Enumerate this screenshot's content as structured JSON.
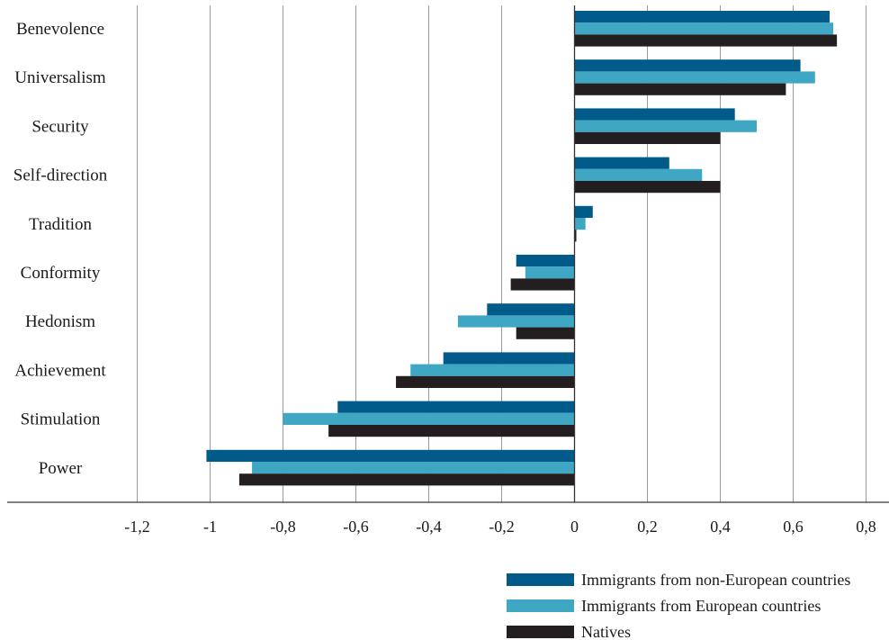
{
  "chart_data": {
    "type": "bar",
    "orientation": "horizontal",
    "categories": [
      "Benevolence",
      "Universalism",
      "Security",
      "Self-direction",
      "Tradition",
      "Conformity",
      "Hedonism",
      "Achievement",
      "Stimulation",
      "Power"
    ],
    "series": [
      {
        "name": "Immigrants from non-European countries",
        "color": "#005b8a",
        "values": [
          0.7,
          0.62,
          0.44,
          0.26,
          0.05,
          -0.16,
          -0.24,
          -0.36,
          -0.65,
          -1.01
        ]
      },
      {
        "name": "Immigrants from European countries",
        "color": "#3fa6c4",
        "values": [
          0.71,
          0.66,
          0.5,
          0.35,
          0.03,
          -0.135,
          -0.32,
          -0.45,
          -0.8,
          -0.885
        ]
      },
      {
        "name": "Natives",
        "color": "#231f20",
        "values": [
          0.72,
          0.58,
          0.4,
          0.4,
          0.005,
          -0.175,
          -0.16,
          -0.49,
          -0.675,
          -0.92
        ]
      }
    ],
    "x_ticks": [
      -1.2,
      -1,
      -0.8,
      -0.6,
      -0.4,
      -0.2,
      0,
      0.2,
      0.4,
      0.6,
      0.8
    ],
    "x_tick_labels": [
      "-1,2",
      "-1",
      "-0,8",
      "-0,6",
      "-0,4",
      "-0,2",
      "0",
      "0,2",
      "0,4",
      "0,6",
      "0,8"
    ],
    "xlim": [
      -1.2,
      0.8
    ],
    "grid": "vertical",
    "legend_position": "bottom-right",
    "title": "",
    "xlabel": "",
    "ylabel": ""
  }
}
